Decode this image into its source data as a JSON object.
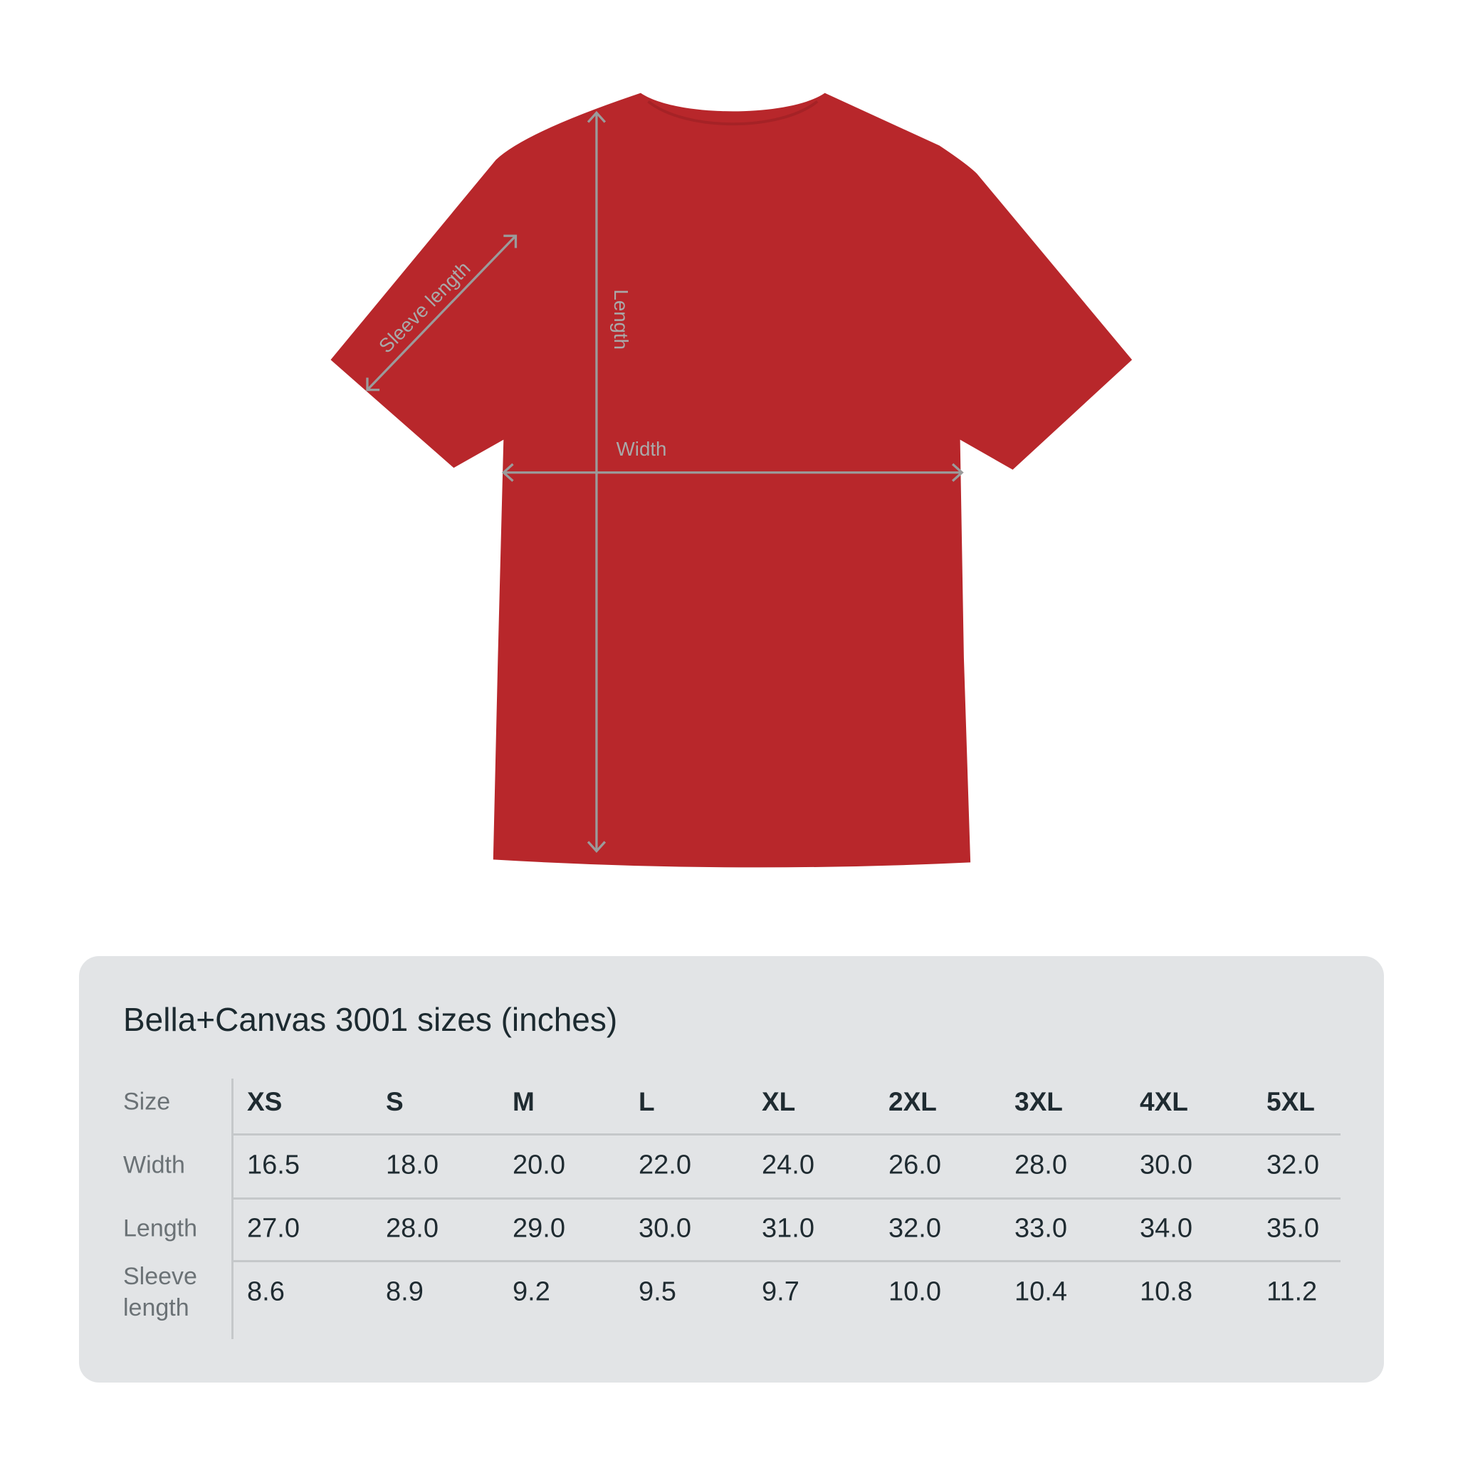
{
  "shirt": {
    "color": "#b8272b",
    "measure_color": "#9b9b9b",
    "labels": {
      "length": "Length",
      "width": "Width",
      "sleeve": "Sleeve length"
    }
  },
  "table": {
    "title": "Bella+Canvas 3001 sizes (inches)",
    "row_labels": [
      "Size",
      "Width",
      "Length",
      "Sleeve length"
    ],
    "sizes": [
      "XS",
      "S",
      "M",
      "L",
      "XL",
      "2XL",
      "3XL",
      "4XL",
      "5XL"
    ],
    "rows": [
      [
        "16.5",
        "18.0",
        "20.0",
        "22.0",
        "24.0",
        "26.0",
        "28.0",
        "30.0",
        "32.0"
      ],
      [
        "27.0",
        "28.0",
        "29.0",
        "30.0",
        "31.0",
        "32.0",
        "33.0",
        "34.0",
        "35.0"
      ],
      [
        "8.6",
        "8.9",
        "9.2",
        "9.5",
        "9.7",
        "10.0",
        "10.4",
        "10.8",
        "11.2"
      ]
    ]
  }
}
